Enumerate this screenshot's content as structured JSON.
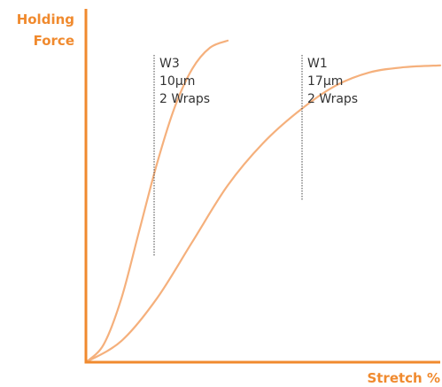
{
  "chart_data": {
    "type": "line",
    "ylabel": [
      "Holding",
      "Force"
    ],
    "xlabel": "Stretch %",
    "grid": false,
    "legend": "none",
    "axis_ticks": "none",
    "xlim": [
      0,
      100
    ],
    "ylim": [
      0,
      100
    ],
    "series": [
      {
        "x": [
          0,
          5,
          10,
          15,
          20,
          25,
          30,
          35,
          40
        ],
        "y": [
          0,
          5,
          18,
          37,
          56,
          72,
          83,
          89,
          91
        ]
      },
      {
        "x": [
          0,
          10,
          20,
          30,
          40,
          50,
          60,
          70,
          80,
          90,
          100
        ],
        "y": [
          0,
          6,
          18,
          34,
          50,
          62,
          71,
          78,
          82,
          83.5,
          84
        ]
      }
    ],
    "annotations": [
      {
        "lines": [
          "W3",
          "10µm",
          "2 Wraps"
        ],
        "series_index": 0
      },
      {
        "lines": [
          "W1",
          "17µm",
          "2 Wraps"
        ],
        "series_index": 1
      }
    ]
  },
  "colors": {
    "axis": "#f08a2e",
    "axis_label": "#f08a2e",
    "curve": "#f5b07c",
    "leader_line": "#444444",
    "annotation_text": "#333333"
  }
}
